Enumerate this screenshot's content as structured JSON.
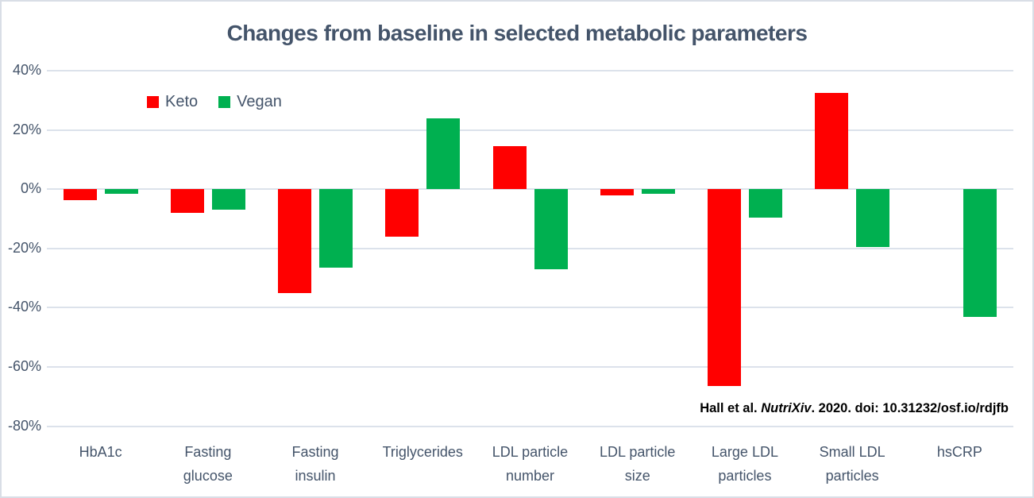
{
  "chart_data": {
    "type": "bar",
    "title": "Changes from baseline in selected metabolic parameters",
    "title_color": "#44546A",
    "axis_label_color": "#44546A",
    "gridline_color": "#DCE2EB",
    "background_color": "#FFFFFF",
    "frame_border_color": "#D9DEE6",
    "units": "percent change from baseline",
    "categories": [
      "HbA1c",
      "Fasting\nglucose",
      "Fasting\ninsulin",
      "Triglycerides",
      "LDL particle\nnumber",
      "LDL particle\nsize",
      "Large LDL\nparticles",
      "Small LDL\nparticles",
      "hsCRP"
    ],
    "series": [
      {
        "name": "Keto",
        "color": "#FF0000",
        "values": [
          -3.8,
          -8,
          -35,
          -16,
          14.5,
          -2,
          -66.5,
          32.5,
          null
        ]
      },
      {
        "name": "Vegan",
        "color": "#00B050",
        "values": [
          -1.7,
          -7,
          -26.5,
          24,
          -27,
          -1.5,
          -9.5,
          -19.5,
          -43
        ]
      }
    ],
    "ylim": [
      -80,
      40
    ],
    "yticks": [
      {
        "value": 40,
        "label": "40%"
      },
      {
        "value": 20,
        "label": "20%"
      },
      {
        "value": 0,
        "label": "0%"
      },
      {
        "value": -20,
        "label": "-20%"
      },
      {
        "value": -40,
        "label": "-40%"
      },
      {
        "value": -60,
        "label": "-60%"
      },
      {
        "value": -80,
        "label": "-80%"
      }
    ],
    "grid": "horizontal",
    "legend_position": "inside-top-left",
    "citation": {
      "pre": "Hall et al. ",
      "journal_italic": "NutriXiv",
      "post": ". 2020. doi: 10.31232/osf.io/rdjfb"
    }
  }
}
